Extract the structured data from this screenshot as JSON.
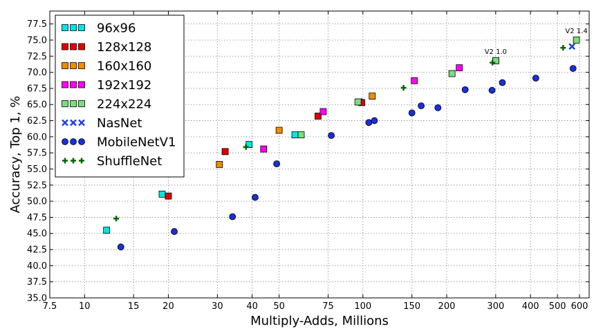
{
  "chart_data": {
    "type": "scatter",
    "xlabel": "Multiply-Adds, Millions",
    "ylabel": "Accuracy, Top 1, %",
    "xscale": "log",
    "xlim": [
      7.5,
      650
    ],
    "ylim": [
      35.0,
      79.5
    ],
    "grid": true,
    "legend_position": "top-left",
    "xticks": [
      {
        "value": 7.5,
        "label": "7.5"
      },
      {
        "value": 10,
        "label": "10"
      },
      {
        "value": 15,
        "label": "15"
      },
      {
        "value": 20,
        "label": "20"
      },
      {
        "value": 30,
        "label": "30"
      },
      {
        "value": 40,
        "label": "40"
      },
      {
        "value": 50,
        "label": "50"
      },
      {
        "value": 75,
        "label": "75"
      },
      {
        "value": 100,
        "label": "100"
      },
      {
        "value": 150,
        "label": "150"
      },
      {
        "value": 200,
        "label": "200"
      },
      {
        "value": 300,
        "label": "300"
      },
      {
        "value": 400,
        "label": "400"
      },
      {
        "value": 500,
        "label": "500"
      },
      {
        "value": 600,
        "label": "600"
      }
    ],
    "yticks": [
      "35.0",
      "37.5",
      "40.0",
      "42.5",
      "45.0",
      "47.5",
      "50.0",
      "52.5",
      "55.0",
      "57.5",
      "60.0",
      "62.5",
      "65.0",
      "67.5",
      "70.0",
      "72.5",
      "75.0",
      "77.5"
    ],
    "series": [
      {
        "name": "96x96",
        "marker": "square",
        "color": "#00e5e5",
        "points": [
          [
            12,
            45.5
          ],
          [
            19,
            51.1
          ],
          [
            39,
            58.8
          ],
          [
            57,
            60.3
          ],
          [
            97,
            65.4
          ],
          [
            300,
            71.8
          ]
        ]
      },
      {
        "name": "128x128",
        "marker": "square",
        "color": "#e00000",
        "points": [
          [
            20,
            50.8
          ],
          [
            32,
            57.7
          ],
          [
            69,
            63.2
          ],
          [
            99,
            65.3
          ]
        ]
      },
      {
        "name": "160x160",
        "marker": "square",
        "color": "#f08c00",
        "points": [
          [
            30.5,
            55.7
          ],
          [
            50,
            61.0
          ],
          [
            108,
            66.3
          ]
        ]
      },
      {
        "name": "192x192",
        "marker": "square",
        "color": "#ff00ff",
        "points": [
          [
            44,
            58.1
          ],
          [
            72,
            63.9
          ],
          [
            153,
            68.7
          ],
          [
            222,
            70.7
          ]
        ]
      },
      {
        "name": "224x224",
        "marker": "square",
        "color": "#7ddc7d",
        "points": [
          [
            60,
            60.3
          ],
          [
            96,
            65.4
          ],
          [
            209,
            69.8
          ],
          [
            300,
            71.8
          ],
          [
            585,
            75.0
          ]
        ]
      },
      {
        "name": "NasNet",
        "marker": "x",
        "color": "#1f3fe0",
        "points": [
          [
            564,
            74.0
          ]
        ]
      },
      {
        "name": "MobileNetV1",
        "marker": "circle",
        "color": "#1a2fd8",
        "points": [
          [
            13.5,
            42.9
          ],
          [
            21,
            45.3
          ],
          [
            34,
            47.6
          ],
          [
            41,
            50.6
          ],
          [
            49,
            55.8
          ],
          [
            77,
            60.2
          ],
          [
            105,
            62.2
          ],
          [
            110,
            62.5
          ],
          [
            150,
            63.7
          ],
          [
            162,
            64.8
          ],
          [
            186,
            64.5
          ],
          [
            233,
            67.3
          ],
          [
            291,
            67.2
          ],
          [
            317,
            68.4
          ],
          [
            418,
            69.1
          ],
          [
            569,
            70.6
          ]
        ]
      },
      {
        "name": "ShuffleNet",
        "marker": "plus",
        "color": "#006400",
        "points": [
          [
            13,
            47.3
          ],
          [
            38,
            58.4
          ],
          [
            140,
            67.6
          ],
          [
            292,
            71.5
          ],
          [
            524,
            73.8
          ]
        ]
      }
    ],
    "annotations": [
      {
        "text": "V2 1.0",
        "x": 300,
        "y": 71.8
      },
      {
        "text": "V2 1.4",
        "x": 585,
        "y": 75.0
      }
    ]
  }
}
